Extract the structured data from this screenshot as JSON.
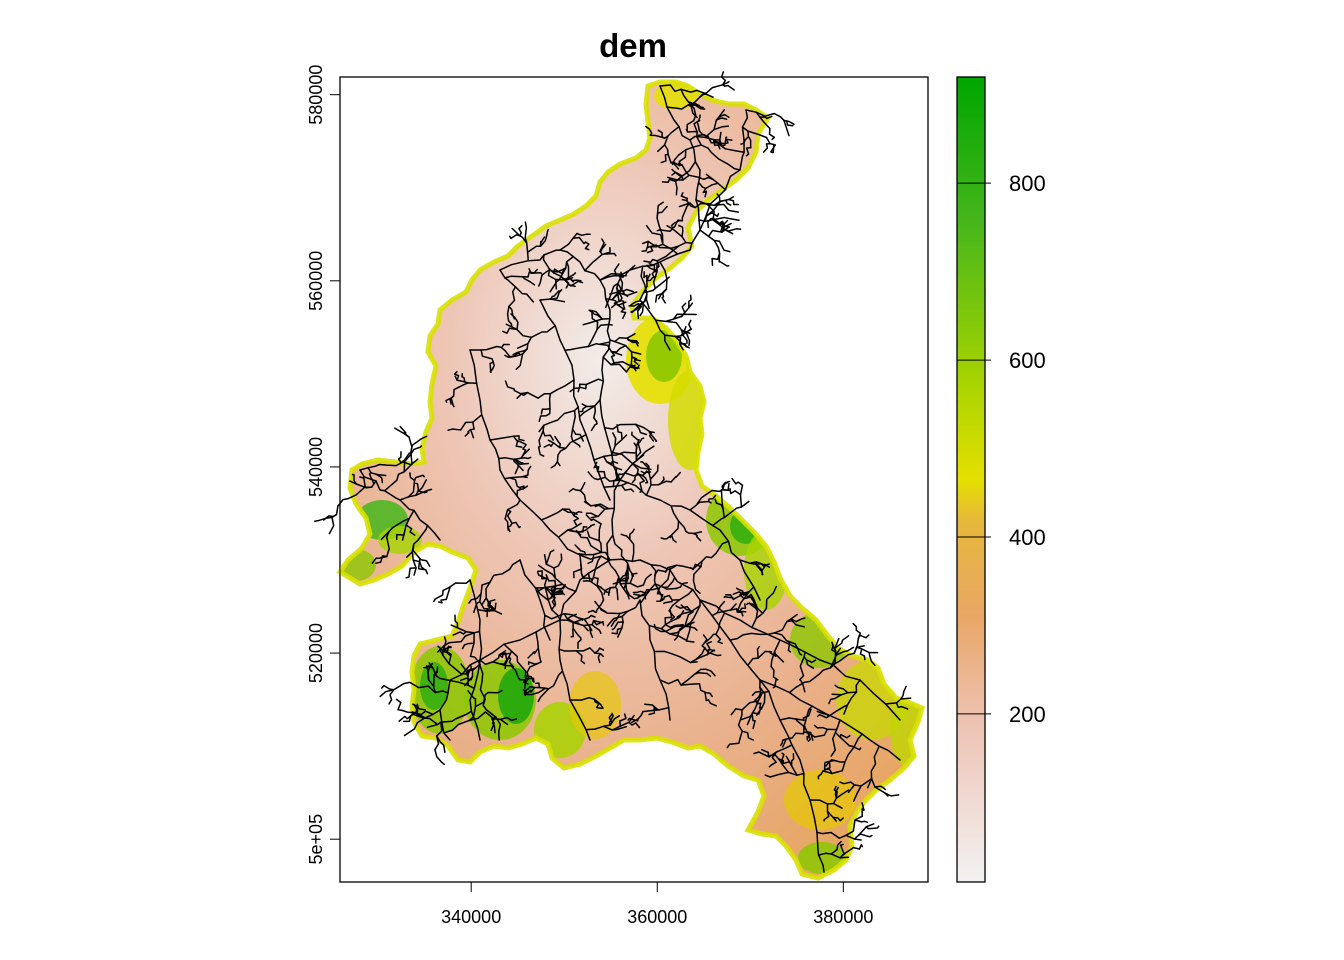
{
  "title": "dem",
  "map": {
    "x_ticks": [
      "340000",
      "360000",
      "380000"
    ],
    "y_ticks": [
      "5e+05",
      "520000",
      "540000",
      "560000",
      "580000"
    ],
    "x_tick_values": [
      340000,
      360000,
      380000
    ],
    "y_tick_values": [
      500000,
      520000,
      540000,
      560000,
      580000
    ],
    "x_range": [
      325900,
      389100
    ],
    "y_range": [
      495400,
      581900
    ],
    "layers": [
      "elevation raster",
      "stream network"
    ]
  },
  "legend": {
    "ticks": [
      "200",
      "400",
      "600",
      "800"
    ],
    "tick_values": [
      200,
      400,
      600,
      800
    ],
    "range": [
      10,
      920
    ],
    "colors": [
      "#f2f2f2",
      "#eec2b2",
      "#e9a766",
      "#e6b83a",
      "#e5e000",
      "#a8d400",
      "#46b61b",
      "#00a600"
    ]
  },
  "colors": {
    "low": "#f2f2f2",
    "mid_low": "#eec2b2",
    "mid": "#e9a766",
    "high_mid": "#e6d800",
    "high": "#00a600",
    "stream": "#000000"
  }
}
